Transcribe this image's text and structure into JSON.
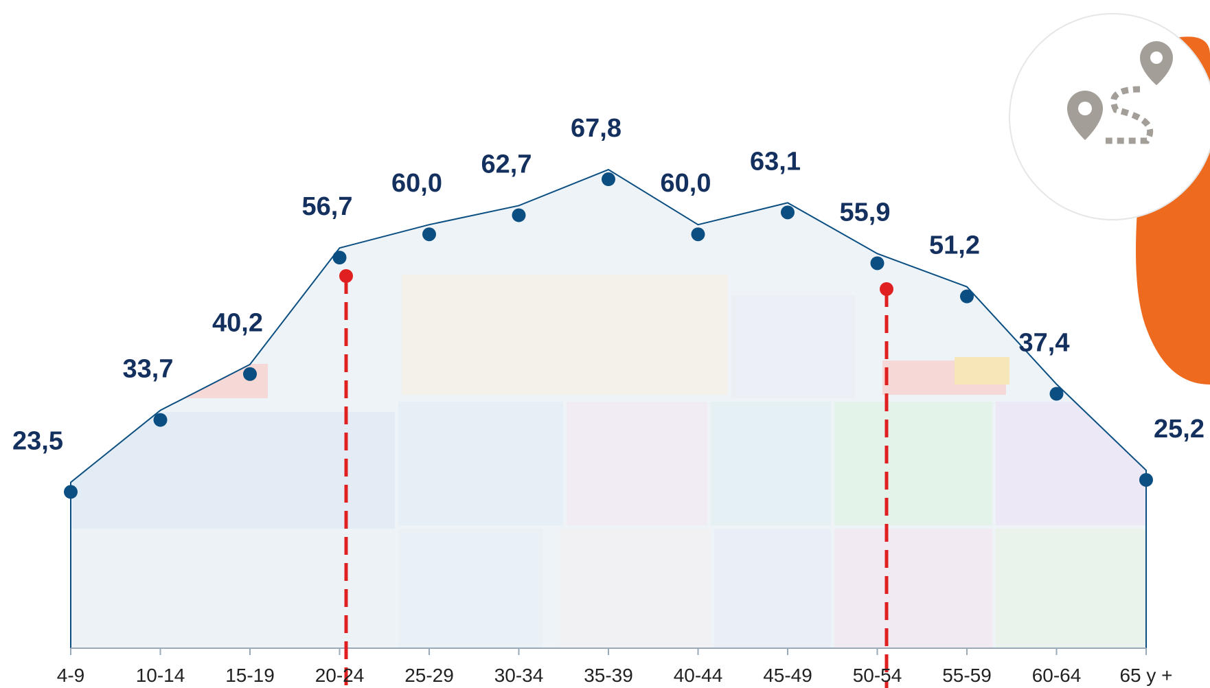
{
  "chart_data": {
    "type": "area",
    "categories": [
      "4-9",
      "10-14",
      "15-19",
      "20-24",
      "25-29",
      "30-34",
      "35-39",
      "40-44",
      "45-49",
      "50-54",
      "55-59",
      "60-64",
      "65 y +"
    ],
    "values": [
      23.5,
      33.7,
      40.2,
      56.7,
      60.0,
      62.7,
      67.8,
      60.0,
      63.1,
      55.9,
      51.2,
      37.4,
      25.2
    ],
    "value_labels": [
      "23,5",
      "33,7",
      "40,2",
      "56,7",
      "60,0",
      "62,7",
      "67,8",
      "60,0",
      "63,1",
      "55,9",
      "51,2",
      "37,4",
      "25,2"
    ],
    "color": "#0b4f82"
  }
}
